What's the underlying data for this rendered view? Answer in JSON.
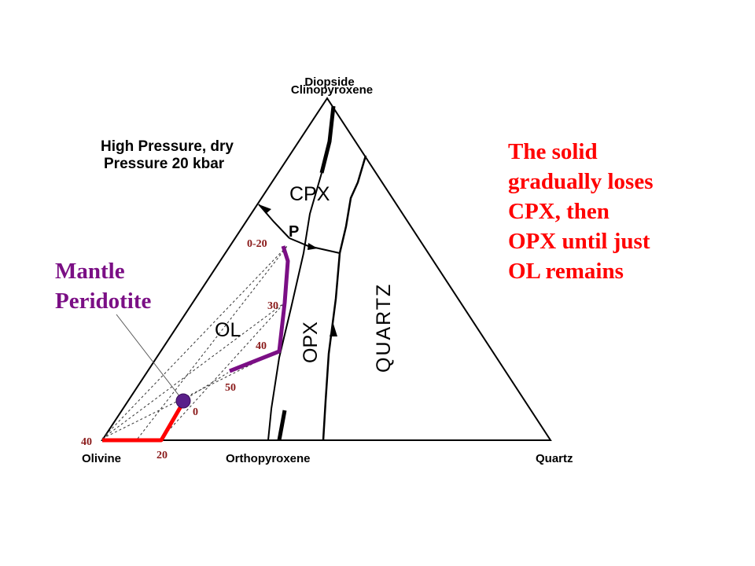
{
  "apices": {
    "top_1": "Diopside",
    "top_2": "Clinopyroxene",
    "left": "Olivine",
    "middle": "Orthopyroxene",
    "right": "Quartz"
  },
  "conditions": {
    "line1": "High Pressure, dry",
    "line2": "Pressure 20 kbar"
  },
  "fields": {
    "cpx": "CPX",
    "ol": "OL",
    "opx": "OPX",
    "quartz": "QUARTZ",
    "p": "P"
  },
  "melt_labels": [
    "0-20",
    "30",
    "40",
    "50"
  ],
  "residue_labels": [
    "0",
    "20",
    "40"
  ],
  "notes": {
    "solid": "The solid\ngradually loses\nCPX, then\nOPX until just\nOL remains",
    "mantle": "Mantle\nPeridotite"
  },
  "colors": {
    "melt_path": "#7b0f85",
    "residue_path": "#ff0000",
    "note_text": "#ff0000",
    "mantle_text": "#7b0f85",
    "label_brown": "#8a1a1a",
    "peridotite_dot": "#5a1f8a"
  }
}
